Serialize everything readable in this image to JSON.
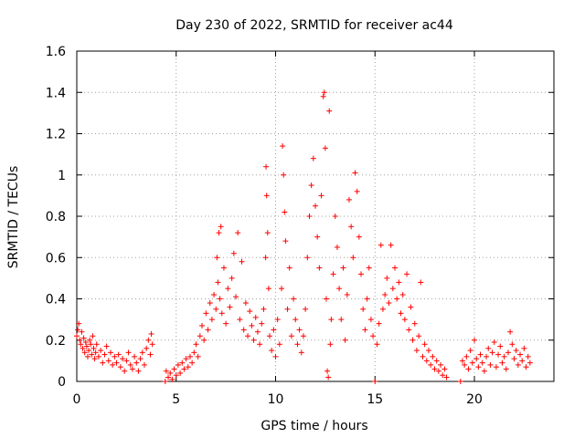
{
  "chart_data": {
    "type": "scatter",
    "title": "Day 230 of 2022, SRMTID for receiver ac44",
    "xlabel": "GPS time / hours",
    "ylabel": "SRMTID / TECUs",
    "xlim": [
      0,
      24
    ],
    "ylim": [
      0,
      1.6
    ],
    "x_ticks": [
      0,
      5,
      10,
      15,
      20
    ],
    "y_ticks": [
      0,
      0.2,
      0.4,
      0.6,
      0.8,
      1.0,
      1.2,
      1.4,
      1.6
    ],
    "x_tick_labels": [
      "0",
      "5",
      "10",
      "15",
      "20"
    ],
    "y_tick_labels": [
      "0",
      "0.2",
      "0.4",
      "0.6",
      "0.8",
      "1",
      "1.2",
      "1.4",
      "1.6"
    ],
    "grid": true,
    "marker": "+",
    "series": [
      {
        "name": "SRMTID",
        "color": "#ff0000",
        "points": [
          [
            0.0,
            0.22
          ],
          [
            0.05,
            0.25
          ],
          [
            0.1,
            0.28
          ],
          [
            0.15,
            0.2
          ],
          [
            0.2,
            0.18
          ],
          [
            0.25,
            0.24
          ],
          [
            0.3,
            0.16
          ],
          [
            0.35,
            0.21
          ],
          [
            0.4,
            0.14
          ],
          [
            0.45,
            0.19
          ],
          [
            0.5,
            0.17
          ],
          [
            0.55,
            0.12
          ],
          [
            0.6,
            0.15
          ],
          [
            0.65,
            0.2
          ],
          [
            0.7,
            0.18
          ],
          [
            0.75,
            0.13
          ],
          [
            0.8,
            0.22
          ],
          [
            0.85,
            0.16
          ],
          [
            0.9,
            0.11
          ],
          [
            0.95,
            0.14
          ],
          [
            1.0,
            0.18
          ],
          [
            1.1,
            0.12
          ],
          [
            1.2,
            0.15
          ],
          [
            1.3,
            0.09
          ],
          [
            1.4,
            0.13
          ],
          [
            1.5,
            0.17
          ],
          [
            1.6,
            0.1
          ],
          [
            1.7,
            0.14
          ],
          [
            1.8,
            0.08
          ],
          [
            1.9,
            0.12
          ],
          [
            2.0,
            0.09
          ],
          [
            2.1,
            0.13
          ],
          [
            2.2,
            0.07
          ],
          [
            2.3,
            0.11
          ],
          [
            2.4,
            0.05
          ],
          [
            2.5,
            0.1
          ],
          [
            2.6,
            0.14
          ],
          [
            2.7,
            0.08
          ],
          [
            2.8,
            0.06
          ],
          [
            2.9,
            0.12
          ],
          [
            3.0,
            0.09
          ],
          [
            3.1,
            0.05
          ],
          [
            3.2,
            0.11
          ],
          [
            3.3,
            0.14
          ],
          [
            3.4,
            0.08
          ],
          [
            3.5,
            0.16
          ],
          [
            3.6,
            0.2
          ],
          [
            3.7,
            0.13
          ],
          [
            3.75,
            0.23
          ],
          [
            3.8,
            0.18
          ],
          [
            4.45,
            0.0
          ],
          [
            4.5,
            0.05
          ],
          [
            4.6,
            0.02
          ],
          [
            4.7,
            0.04
          ],
          [
            4.8,
            0.01
          ],
          [
            4.9,
            0.06
          ],
          [
            5.0,
            0.03
          ],
          [
            5.1,
            0.08
          ],
          [
            5.2,
            0.04
          ],
          [
            5.3,
            0.09
          ],
          [
            5.4,
            0.06
          ],
          [
            5.5,
            0.11
          ],
          [
            5.6,
            0.07
          ],
          [
            5.7,
            0.12
          ],
          [
            5.8,
            0.09
          ],
          [
            5.9,
            0.14
          ],
          [
            6.0,
            0.18
          ],
          [
            6.1,
            0.12
          ],
          [
            6.2,
            0.22
          ],
          [
            6.3,
            0.27
          ],
          [
            6.4,
            0.2
          ],
          [
            6.5,
            0.33
          ],
          [
            6.6,
            0.25
          ],
          [
            6.7,
            0.38
          ],
          [
            6.8,
            0.3
          ],
          [
            6.9,
            0.42
          ],
          [
            7.0,
            0.35
          ],
          [
            7.05,
            0.6
          ],
          [
            7.1,
            0.48
          ],
          [
            7.15,
            0.72
          ],
          [
            7.2,
            0.4
          ],
          [
            7.25,
            0.75
          ],
          [
            7.3,
            0.33
          ],
          [
            7.4,
            0.55
          ],
          [
            7.5,
            0.28
          ],
          [
            7.6,
            0.45
          ],
          [
            7.7,
            0.36
          ],
          [
            7.8,
            0.5
          ],
          [
            7.9,
            0.62
          ],
          [
            8.0,
            0.41
          ],
          [
            8.1,
            0.72
          ],
          [
            8.2,
            0.3
          ],
          [
            8.3,
            0.58
          ],
          [
            8.4,
            0.25
          ],
          [
            8.5,
            0.38
          ],
          [
            8.6,
            0.22
          ],
          [
            8.7,
            0.34
          ],
          [
            8.8,
            0.27
          ],
          [
            8.9,
            0.2
          ],
          [
            9.0,
            0.31
          ],
          [
            9.1,
            0.24
          ],
          [
            9.2,
            0.18
          ],
          [
            9.3,
            0.28
          ],
          [
            9.4,
            0.35
          ],
          [
            9.5,
            0.6
          ],
          [
            9.52,
            1.04
          ],
          [
            9.55,
            0.9
          ],
          [
            9.6,
            0.72
          ],
          [
            9.65,
            0.45
          ],
          [
            9.7,
            0.22
          ],
          [
            9.8,
            0.15
          ],
          [
            9.9,
            0.25
          ],
          [
            10.0,
            0.12
          ],
          [
            10.1,
            0.3
          ],
          [
            10.2,
            0.18
          ],
          [
            10.3,
            0.45
          ],
          [
            10.35,
            1.14
          ],
          [
            10.4,
            1.0
          ],
          [
            10.45,
            0.82
          ],
          [
            10.5,
            0.68
          ],
          [
            10.6,
            0.35
          ],
          [
            10.7,
            0.55
          ],
          [
            10.8,
            0.22
          ],
          [
            10.9,
            0.4
          ],
          [
            11.0,
            0.3
          ],
          [
            11.1,
            0.18
          ],
          [
            11.2,
            0.25
          ],
          [
            11.3,
            0.14
          ],
          [
            11.4,
            0.22
          ],
          [
            11.5,
            0.35
          ],
          [
            11.6,
            0.6
          ],
          [
            11.7,
            0.8
          ],
          [
            11.8,
            0.95
          ],
          [
            11.9,
            1.08
          ],
          [
            12.0,
            0.85
          ],
          [
            12.1,
            0.7
          ],
          [
            12.2,
            0.55
          ],
          [
            12.3,
            0.9
          ],
          [
            12.4,
            1.38
          ],
          [
            12.45,
            1.4
          ],
          [
            12.5,
            1.13
          ],
          [
            12.55,
            0.4
          ],
          [
            12.6,
            0.05
          ],
          [
            12.65,
            0.02
          ],
          [
            12.7,
            1.31
          ],
          [
            12.75,
            0.18
          ],
          [
            12.8,
            0.3
          ],
          [
            12.9,
            0.52
          ],
          [
            13.0,
            0.8
          ],
          [
            13.1,
            0.65
          ],
          [
            13.2,
            0.45
          ],
          [
            13.3,
            0.3
          ],
          [
            13.4,
            0.55
          ],
          [
            13.5,
            0.2
          ],
          [
            13.6,
            0.42
          ],
          [
            13.7,
            0.88
          ],
          [
            13.8,
            0.75
          ],
          [
            13.9,
            0.6
          ],
          [
            14.0,
            1.01
          ],
          [
            14.1,
            0.92
          ],
          [
            14.2,
            0.7
          ],
          [
            14.3,
            0.52
          ],
          [
            14.4,
            0.35
          ],
          [
            14.5,
            0.25
          ],
          [
            14.6,
            0.4
          ],
          [
            14.7,
            0.55
          ],
          [
            14.8,
            0.3
          ],
          [
            14.9,
            0.22
          ],
          [
            15.0,
            0.0
          ],
          [
            15.1,
            0.18
          ],
          [
            15.2,
            0.28
          ],
          [
            15.3,
            0.66
          ],
          [
            15.4,
            0.35
          ],
          [
            15.5,
            0.42
          ],
          [
            15.6,
            0.5
          ],
          [
            15.7,
            0.38
          ],
          [
            15.8,
            0.66
          ],
          [
            15.9,
            0.45
          ],
          [
            16.0,
            0.55
          ],
          [
            16.1,
            0.4
          ],
          [
            16.2,
            0.48
          ],
          [
            16.3,
            0.33
          ],
          [
            16.4,
            0.42
          ],
          [
            16.5,
            0.3
          ],
          [
            16.6,
            0.52
          ],
          [
            16.7,
            0.25
          ],
          [
            16.8,
            0.36
          ],
          [
            16.9,
            0.2
          ],
          [
            17.0,
            0.28
          ],
          [
            17.1,
            0.15
          ],
          [
            17.2,
            0.22
          ],
          [
            17.3,
            0.48
          ],
          [
            17.4,
            0.12
          ],
          [
            17.5,
            0.18
          ],
          [
            17.6,
            0.1
          ],
          [
            17.7,
            0.15
          ],
          [
            17.8,
            0.08
          ],
          [
            17.9,
            0.12
          ],
          [
            18.0,
            0.06
          ],
          [
            18.1,
            0.1
          ],
          [
            18.2,
            0.05
          ],
          [
            18.3,
            0.08
          ],
          [
            18.4,
            0.03
          ],
          [
            18.5,
            0.06
          ],
          [
            18.6,
            0.02
          ],
          [
            19.3,
            0.0
          ],
          [
            19.4,
            0.1
          ],
          [
            19.5,
            0.08
          ],
          [
            19.6,
            0.12
          ],
          [
            19.7,
            0.06
          ],
          [
            19.8,
            0.15
          ],
          [
            19.9,
            0.09
          ],
          [
            20.0,
            0.2
          ],
          [
            20.1,
            0.11
          ],
          [
            20.2,
            0.07
          ],
          [
            20.3,
            0.13
          ],
          [
            20.4,
            0.09
          ],
          [
            20.5,
            0.05
          ],
          [
            20.6,
            0.12
          ],
          [
            20.7,
            0.16
          ],
          [
            20.8,
            0.08
          ],
          [
            20.9,
            0.14
          ],
          [
            21.0,
            0.19
          ],
          [
            21.1,
            0.07
          ],
          [
            21.2,
            0.13
          ],
          [
            21.3,
            0.17
          ],
          [
            21.4,
            0.09
          ],
          [
            21.5,
            0.12
          ],
          [
            21.6,
            0.06
          ],
          [
            21.7,
            0.14
          ],
          [
            21.8,
            0.24
          ],
          [
            21.9,
            0.18
          ],
          [
            22.0,
            0.11
          ],
          [
            22.1,
            0.15
          ],
          [
            22.2,
            0.08
          ],
          [
            22.3,
            0.13
          ],
          [
            22.4,
            0.1
          ],
          [
            22.5,
            0.16
          ],
          [
            22.6,
            0.07
          ],
          [
            22.7,
            0.12
          ],
          [
            22.8,
            0.09
          ]
        ]
      }
    ]
  }
}
